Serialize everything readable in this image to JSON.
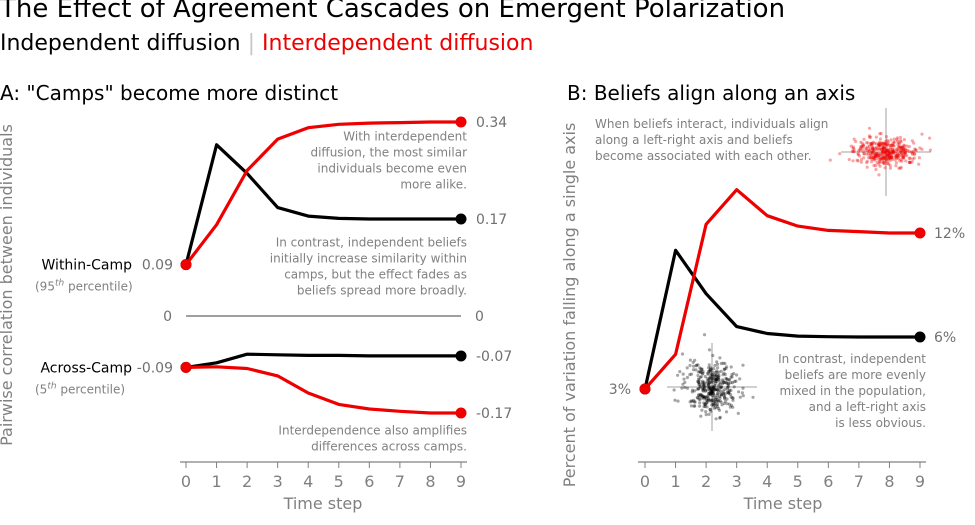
{
  "title": "The Effect of Agreement Cascades on Emergent Polarization",
  "legend": {
    "independent": "Independent diffusion",
    "separator": "|",
    "interdependent": "Interdependent diffusion"
  },
  "colors": {
    "independent": "#000000",
    "interdependent": "#ee0000",
    "muted": "#808080"
  },
  "chart_data": [
    {
      "type": "line",
      "title": "A: \"Camps\" become more distinct",
      "xlabel": "Time step",
      "ylabel": "Pairwise correlation between individuals",
      "x": [
        0,
        1,
        2,
        3,
        4,
        5,
        6,
        7,
        8,
        9
      ],
      "xlim": [
        0,
        9
      ],
      "ylim": [
        -0.22,
        0.36
      ],
      "series": [
        {
          "key": "within_independent",
          "color": "#000000",
          "values": [
            0.09,
            0.3,
            0.25,
            0.19,
            0.175,
            0.171,
            0.17,
            0.17,
            0.17,
            0.17
          ]
        },
        {
          "key": "within_interdependent",
          "color": "#ee0000",
          "values": [
            0.09,
            0.16,
            0.255,
            0.31,
            0.33,
            0.336,
            0.338,
            0.339,
            0.34,
            0.34
          ]
        },
        {
          "key": "across_independent",
          "color": "#000000",
          "values": [
            -0.09,
            -0.082,
            -0.067,
            -0.068,
            -0.069,
            -0.069,
            -0.07,
            -0.07,
            -0.07,
            -0.07
          ]
        },
        {
          "key": "across_interdependent",
          "color": "#ee0000",
          "values": [
            -0.09,
            -0.089,
            -0.092,
            -0.105,
            -0.135,
            -0.155,
            -0.163,
            -0.167,
            -0.17,
            -0.17
          ]
        }
      ],
      "zero_line": {
        "value": 0,
        "left_label": "0",
        "right_label": "0"
      },
      "start_labels": [
        {
          "y": 0.09,
          "text": "0.09"
        },
        {
          "y": -0.09,
          "text": "-0.09"
        }
      ],
      "end_labels": [
        {
          "y": 0.34,
          "text": "0.34"
        },
        {
          "y": 0.17,
          "text": "0.17"
        },
        {
          "y": -0.07,
          "text": "-0.07"
        },
        {
          "y": -0.17,
          "text": "-0.17"
        }
      ],
      "group_labels": [
        {
          "y": 0.09,
          "name": "Within-Camp",
          "sub_pre": "(95",
          "sub_sup": "th",
          "sub_post": " percentile)"
        },
        {
          "y": -0.09,
          "name": "Across-Camp",
          "sub_pre": "(5",
          "sub_sup": "th",
          "sub_post": " percentile)"
        }
      ],
      "annotations": [
        {
          "anchor_y": 0.33,
          "lines": [
            "With interdependent",
            "diffusion, the most similar",
            "individuals become even",
            "more alike."
          ]
        },
        {
          "anchor_y": 0.145,
          "lines": [
            "In contrast, independent beliefs",
            "initially increase similarity within",
            "camps, but the effect fades as",
            "beliefs spread more broadly."
          ]
        },
        {
          "anchor_y": -0.185,
          "lines": [
            "Interdependence also amplifies",
            "differences across camps."
          ]
        }
      ]
    },
    {
      "type": "line",
      "title": "B: Beliefs align along an axis",
      "xlabel": "Time step",
      "ylabel": "Percent of variation falling along a single axis",
      "x": [
        0,
        1,
        2,
        3,
        4,
        5,
        6,
        7,
        8,
        9
      ],
      "xlim": [
        0,
        9
      ],
      "ylim": [
        0.0,
        0.21
      ],
      "series": [
        {
          "key": "independent",
          "color": "#000000",
          "values": [
            3,
            11,
            8.5,
            6.6,
            6.2,
            6.05,
            6.02,
            6.0,
            6.0,
            6.0
          ]
        },
        {
          "key": "interdependent",
          "color": "#ee0000",
          "values": [
            3,
            5,
            12.5,
            14.5,
            13,
            12.4,
            12.15,
            12.08,
            12.0,
            12.0
          ]
        }
      ],
      "start_label": {
        "y": 3,
        "text": "3%"
      },
      "end_labels": [
        {
          "y": 12,
          "text": "12%"
        },
        {
          "y": 6,
          "text": "6%"
        }
      ],
      "annotations": [
        {
          "position": "top-left",
          "lines": [
            "When beliefs interact, individuals align",
            "along a left-right axis and beliefs",
            "become associated with each other."
          ]
        },
        {
          "position": "bottom-right",
          "lines": [
            "In contrast, independent",
            "beliefs are more evenly",
            "mixed in the population,",
            "and a left-right axis",
            "is less obvious."
          ]
        }
      ],
      "insets": [
        {
          "name": "aligned-scatter-inset",
          "color": "#ee0000",
          "shape": "elongated"
        },
        {
          "name": "mixed-scatter-inset",
          "color": "#000000",
          "shape": "round"
        }
      ]
    }
  ]
}
